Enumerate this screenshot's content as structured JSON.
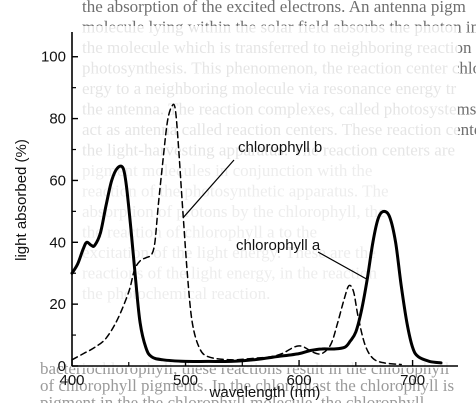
{
  "background_text": {
    "lines": [
      "the absorption of the excited electrons. An antenna pigm",
      "molecule lying within the solar field absorbs the photon in",
      "the molecule which is transferred to neighboring reaction ce",
      "photosynthesis. This phenomenon, the reaction center chloroph",
      "ergy to a neighboring molecule via resonance energy tr",
      "the antenna. The reaction complexes, called photosystems",
      "act as antenna called reaction centers. These reaction center",
      "the light-harvesting apparatus. The reaction centers are",
      "pigment molecules in conjunction with the",
      "reaction of the photosynthetic apparatus. The",
      "absorption of protons by the chlorophyll, the",
      "the reaction of chlorophyll a to the",
      "excitation of the light energy. These are the",
      "reactions of the light energy, in the reaction",
      "the photochemical reaction."
    ],
    "bottom_lines": [
      "bacteriochlorophyll, these reactions result in the chlorophyll",
      "of chlorophyll pigments. In the chloroplast the chlorophyll is",
      "pigment in the the chlorophyll molecule, the chlorophyll"
    ]
  },
  "chart_data": {
    "type": "line",
    "title": "",
    "xlabel": "wavelength (nm)",
    "ylabel": "light absorbed (%)",
    "xlim": [
      400,
      740
    ],
    "ylim": [
      0,
      108
    ],
    "x_ticks": [
      400,
      500,
      600,
      700
    ],
    "y_ticks": [
      0,
      20,
      40,
      60,
      80,
      100
    ],
    "grid": false,
    "series": [
      {
        "name": "chlorophyll a",
        "style": "solid",
        "color": "#000000",
        "points": [
          [
            400,
            30
          ],
          [
            405,
            33
          ],
          [
            410,
            38
          ],
          [
            413,
            40
          ],
          [
            417,
            39
          ],
          [
            420,
            39
          ],
          [
            425,
            43
          ],
          [
            430,
            52
          ],
          [
            435,
            60
          ],
          [
            440,
            64
          ],
          [
            445,
            64
          ],
          [
            448,
            58
          ],
          [
            452,
            44
          ],
          [
            456,
            28
          ],
          [
            460,
            14
          ],
          [
            465,
            6
          ],
          [
            470,
            3
          ],
          [
            480,
            2
          ],
          [
            500,
            1.5
          ],
          [
            520,
            1.5
          ],
          [
            540,
            1.5
          ],
          [
            560,
            2
          ],
          [
            580,
            3
          ],
          [
            600,
            4
          ],
          [
            610,
            5
          ],
          [
            620,
            5.5
          ],
          [
            630,
            5.5
          ],
          [
            640,
            6
          ],
          [
            645,
            8
          ],
          [
            650,
            11
          ],
          [
            655,
            18
          ],
          [
            660,
            28
          ],
          [
            665,
            40
          ],
          [
            670,
            48
          ],
          [
            675,
            50
          ],
          [
            680,
            48
          ],
          [
            685,
            40
          ],
          [
            690,
            26
          ],
          [
            695,
            14
          ],
          [
            700,
            6
          ],
          [
            705,
            3
          ],
          [
            715,
            1.5
          ],
          [
            725,
            1
          ]
        ]
      },
      {
        "name": "chlorophyll b",
        "style": "dashed",
        "color": "#000000",
        "points": [
          [
            400,
            2
          ],
          [
            410,
            4
          ],
          [
            420,
            6
          ],
          [
            430,
            9
          ],
          [
            440,
            15
          ],
          [
            450,
            24
          ],
          [
            455,
            31
          ],
          [
            460,
            34
          ],
          [
            465,
            35
          ],
          [
            470,
            36
          ],
          [
            473,
            40
          ],
          [
            476,
            52
          ],
          [
            480,
            66
          ],
          [
            484,
            79
          ],
          [
            488,
            84
          ],
          [
            491,
            83
          ],
          [
            494,
            70
          ],
          [
            498,
            48
          ],
          [
            502,
            28
          ],
          [
            506,
            14
          ],
          [
            512,
            6
          ],
          [
            520,
            3
          ],
          [
            540,
            2
          ],
          [
            560,
            2.5
          ],
          [
            575,
            3
          ],
          [
            585,
            4
          ],
          [
            595,
            6
          ],
          [
            600,
            6.5
          ],
          [
            605,
            6
          ],
          [
            612,
            4.5
          ],
          [
            620,
            4
          ],
          [
            628,
            7
          ],
          [
            634,
            14
          ],
          [
            640,
            22
          ],
          [
            644,
            26
          ],
          [
            648,
            24
          ],
          [
            652,
            16
          ],
          [
            658,
            7
          ],
          [
            665,
            2.5
          ],
          [
            675,
            1
          ],
          [
            690,
            0.5
          ]
        ]
      }
    ],
    "annotations": [
      {
        "text": "chlorophyll b",
        "series": "chlorophyll b",
        "pointer_at": [
          498,
          48
        ]
      },
      {
        "text": "chlorophyll a",
        "series": "chlorophyll a",
        "pointer_at": [
          660,
          28
        ]
      }
    ]
  }
}
